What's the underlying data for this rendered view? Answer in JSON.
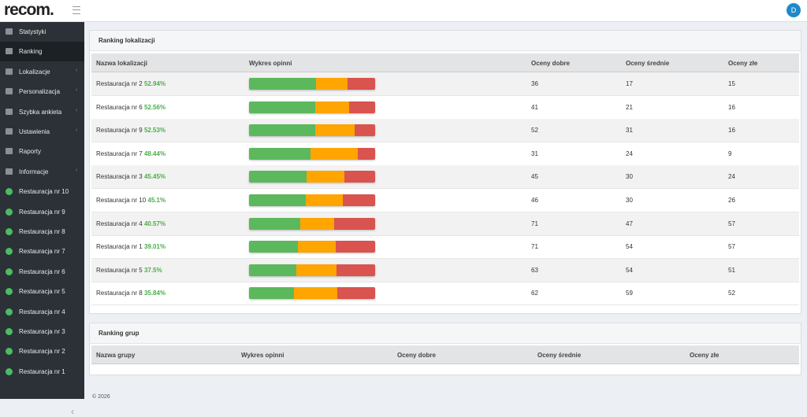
{
  "header": {
    "logo": "recom.",
    "avatar": "D"
  },
  "sidebar": {
    "menu": [
      {
        "label": "Statystyki",
        "submenu": false,
        "active": false
      },
      {
        "label": "Ranking",
        "submenu": false,
        "active": true
      },
      {
        "label": "Lokalizacje",
        "submenu": true,
        "active": false
      },
      {
        "label": "Personalizacja",
        "submenu": true,
        "active": false
      },
      {
        "label": "Szybka ankieta",
        "submenu": true,
        "active": false
      },
      {
        "label": "Ustawienia",
        "submenu": true,
        "active": false
      },
      {
        "label": "Raporty",
        "submenu": false,
        "active": false
      },
      {
        "label": "Informacje",
        "submenu": true,
        "active": false
      }
    ],
    "locations": [
      "Restauracja nr 10",
      "Restauracja nr 9",
      "Restauracja nr 8",
      "Restauracja nr 7",
      "Restauracja nr 6",
      "Restauracja nr 5",
      "Restauracja nr 4",
      "Restauracja nr 3",
      "Restauracja nr 2",
      "Restauracja nr 1"
    ]
  },
  "ranking_locations": {
    "title": "Ranking lokalizacji",
    "columns": [
      "Nazwa lokalizacji",
      "Wykres opinni",
      "Oceny dobre",
      "Oceny średnie",
      "Oceny złe"
    ],
    "colors": [
      "#5cb85c",
      "#ffa500",
      "#d9534f"
    ],
    "rows": [
      {
        "name": "Restauracja nr 2",
        "percent": "52.94%",
        "good": 36,
        "medium": 17,
        "bad": 15
      },
      {
        "name": "Restauracja nr 6",
        "percent": "52.56%",
        "good": 41,
        "medium": 21,
        "bad": 16
      },
      {
        "name": "Restauracja nr 9",
        "percent": "52.53%",
        "good": 52,
        "medium": 31,
        "bad": 16
      },
      {
        "name": "Restauracja nr 7",
        "percent": "48.44%",
        "good": 31,
        "medium": 24,
        "bad": 9
      },
      {
        "name": "Restauracja nr 3",
        "percent": "45.45%",
        "good": 45,
        "medium": 30,
        "bad": 24
      },
      {
        "name": "Restauracja nr 10",
        "percent": "45.1%",
        "good": 46,
        "medium": 30,
        "bad": 26
      },
      {
        "name": "Restauracja nr 4",
        "percent": "40.57%",
        "good": 71,
        "medium": 47,
        "bad": 57
      },
      {
        "name": "Restauracja nr 1",
        "percent": "39.01%",
        "good": 71,
        "medium": 54,
        "bad": 57
      },
      {
        "name": "Restauracja nr 5",
        "percent": "37.5%",
        "good": 63,
        "medium": 54,
        "bad": 51
      },
      {
        "name": "Restauracja nr 8",
        "percent": "35.84%",
        "good": 62,
        "medium": 59,
        "bad": 52
      }
    ]
  },
  "ranking_groups": {
    "title": "Ranking grup",
    "columns": [
      "Nazwa grupy",
      "Wykres opinni",
      "Oceny dobre",
      "Oceny średnie",
      "Oceny złe"
    ]
  },
  "footer": "© 2026"
}
